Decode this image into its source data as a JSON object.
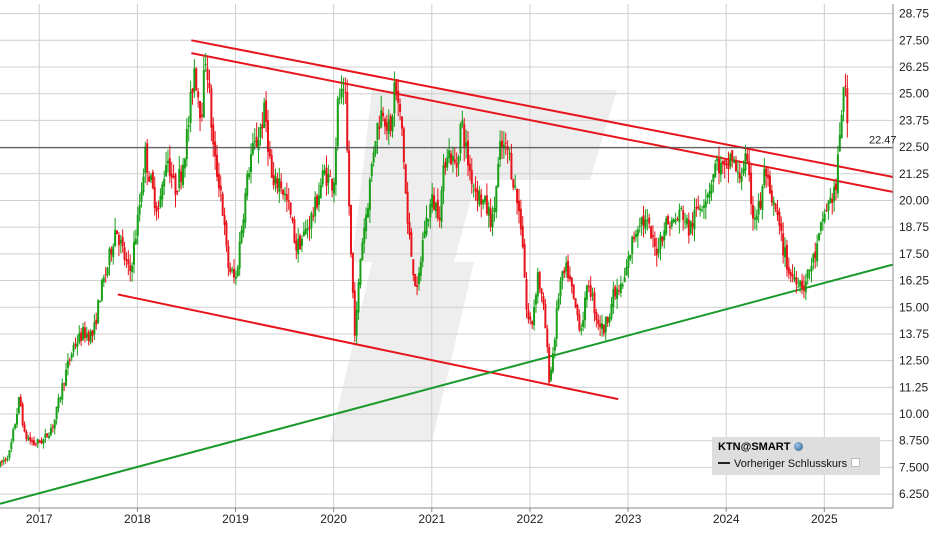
{
  "chart_data": {
    "type": "candlestick",
    "symbol": "KTN@SMART",
    "last_price_label": "22.47",
    "previous_close": 22.47,
    "y_ticks": [
      "28.75",
      "27.50",
      "26.25",
      "25.00",
      "23.75",
      "22.50",
      "21.25",
      "20.00",
      "18.75",
      "17.50",
      "16.25",
      "15.00",
      "13.75",
      "12.50",
      "11.25",
      "10.00",
      "8.750",
      "7.500",
      "6.250"
    ],
    "ylim": [
      5.6,
      29.2
    ],
    "x_ticks": [
      "2017",
      "2018",
      "2019",
      "2020",
      "2021",
      "2022",
      "2023",
      "2024",
      "2025"
    ],
    "x_tick_values": [
      2017,
      2018,
      2019,
      2020,
      2021,
      2022,
      2023,
      2024,
      2025
    ],
    "xlim": [
      2016.6,
      2025.7
    ],
    "y_scale": "linear",
    "grid": true,
    "price_series": [
      [
        2016.6,
        7.6
      ],
      [
        2016.7,
        8.2
      ],
      [
        2016.8,
        10.8
      ],
      [
        2016.85,
        9.0
      ],
      [
        2016.95,
        8.6
      ],
      [
        2017.05,
        8.8
      ],
      [
        2017.15,
        9.6
      ],
      [
        2017.25,
        11.6
      ],
      [
        2017.35,
        13.2
      ],
      [
        2017.45,
        13.8
      ],
      [
        2017.55,
        13.7
      ],
      [
        2017.62,
        15.6
      ],
      [
        2017.7,
        17.0
      ],
      [
        2017.78,
        18.8
      ],
      [
        2017.85,
        17.6
      ],
      [
        2017.92,
        16.5
      ],
      [
        2018.0,
        18.9
      ],
      [
        2018.08,
        22.2
      ],
      [
        2018.15,
        20.5
      ],
      [
        2018.22,
        19.5
      ],
      [
        2018.3,
        22.2
      ],
      [
        2018.38,
        20.5
      ],
      [
        2018.45,
        21.4
      ],
      [
        2018.52,
        23.5
      ],
      [
        2018.58,
        26.3
      ],
      [
        2018.65,
        24.0
      ],
      [
        2018.7,
        27.0
      ],
      [
        2018.78,
        22.0
      ],
      [
        2018.85,
        20.5
      ],
      [
        2018.92,
        17.0
      ],
      [
        2019.0,
        16.2
      ],
      [
        2019.08,
        19.5
      ],
      [
        2019.15,
        22.0
      ],
      [
        2019.22,
        22.8
      ],
      [
        2019.3,
        24.2
      ],
      [
        2019.38,
        20.5
      ],
      [
        2019.45,
        21.0
      ],
      [
        2019.55,
        19.5
      ],
      [
        2019.62,
        17.8
      ],
      [
        2019.7,
        18.4
      ],
      [
        2019.8,
        19.5
      ],
      [
        2019.9,
        21.3
      ],
      [
        2020.0,
        20.8
      ],
      [
        2020.05,
        25.0
      ],
      [
        2020.12,
        24.5
      ],
      [
        2020.18,
        17.0
      ],
      [
        2020.22,
        13.6
      ],
      [
        2020.28,
        17.8
      ],
      [
        2020.35,
        20.0
      ],
      [
        2020.42,
        23.0
      ],
      [
        2020.5,
        24.4
      ],
      [
        2020.58,
        23.0
      ],
      [
        2020.62,
        25.4
      ],
      [
        2020.7,
        23.2
      ],
      [
        2020.75,
        19.0
      ],
      [
        2020.8,
        17.2
      ],
      [
        2020.85,
        15.6
      ],
      [
        2020.92,
        18.6
      ],
      [
        2021.0,
        20.0
      ],
      [
        2021.08,
        19.5
      ],
      [
        2021.15,
        22.5
      ],
      [
        2021.25,
        21.5
      ],
      [
        2021.3,
        23.8
      ],
      [
        2021.38,
        21.5
      ],
      [
        2021.45,
        20.5
      ],
      [
        2021.55,
        19.7
      ],
      [
        2021.62,
        19.0
      ],
      [
        2021.7,
        22.5
      ],
      [
        2021.78,
        22.3
      ],
      [
        2021.85,
        20.5
      ],
      [
        2021.92,
        18.6
      ],
      [
        2021.97,
        14.5
      ],
      [
        2022.02,
        14.2
      ],
      [
        2022.08,
        16.6
      ],
      [
        2022.15,
        14.5
      ],
      [
        2022.2,
        11.5
      ],
      [
        2022.25,
        13.5
      ],
      [
        2022.3,
        16.0
      ],
      [
        2022.38,
        16.8
      ],
      [
        2022.45,
        15.2
      ],
      [
        2022.52,
        14.0
      ],
      [
        2022.6,
        16.2
      ],
      [
        2022.68,
        14.5
      ],
      [
        2022.75,
        13.9
      ],
      [
        2022.85,
        15.5
      ],
      [
        2022.95,
        16.0
      ],
      [
        2023.05,
        18.2
      ],
      [
        2023.12,
        19.2
      ],
      [
        2023.2,
        18.8
      ],
      [
        2023.28,
        17.6
      ],
      [
        2023.38,
        18.9
      ],
      [
        2023.48,
        19.0
      ],
      [
        2023.55,
        19.5
      ],
      [
        2023.62,
        18.6
      ],
      [
        2023.72,
        19.7
      ],
      [
        2023.82,
        20.5
      ],
      [
        2023.9,
        21.8
      ],
      [
        2024.0,
        21.2
      ],
      [
        2024.05,
        22.2
      ],
      [
        2024.12,
        21.0
      ],
      [
        2024.2,
        21.9
      ],
      [
        2024.28,
        19.2
      ],
      [
        2024.35,
        19.8
      ],
      [
        2024.4,
        21.6
      ],
      [
        2024.45,
        19.8
      ],
      [
        2024.5,
        19.6
      ],
      [
        2024.58,
        17.8
      ],
      [
        2024.65,
        16.5
      ],
      [
        2024.72,
        16.4
      ],
      [
        2024.8,
        16.0
      ],
      [
        2024.85,
        16.8
      ],
      [
        2024.92,
        17.6
      ],
      [
        2025.0,
        19.4
      ],
      [
        2025.08,
        20.2
      ],
      [
        2025.12,
        20.6
      ],
      [
        2025.16,
        23.0
      ],
      [
        2025.2,
        25.9
      ],
      [
        2025.25,
        22.5
      ]
    ],
    "trendlines": [
      {
        "color": "#e8141b",
        "from": [
          2018.55,
          27.5
        ],
        "to": [
          2025.7,
          21.1
        ]
      },
      {
        "color": "#e8141b",
        "from": [
          2018.55,
          26.9
        ],
        "to": [
          2025.7,
          20.4
        ]
      },
      {
        "color": "#e8141b",
        "from": [
          2017.8,
          15.6
        ],
        "to": [
          2022.9,
          10.7
        ]
      },
      {
        "color": "#1a9a2a",
        "from": [
          2016.6,
          5.8
        ],
        "to": [
          2025.7,
          17.0
        ]
      }
    ],
    "legend": {
      "symbol": "KTN@SMART",
      "items": [
        "Vorheriger Schlusskurs"
      ]
    },
    "colors": {
      "up": "#18a018",
      "down": "#e8141b",
      "grid": "#cfcfcf",
      "previous_close_line": "#444444"
    }
  }
}
